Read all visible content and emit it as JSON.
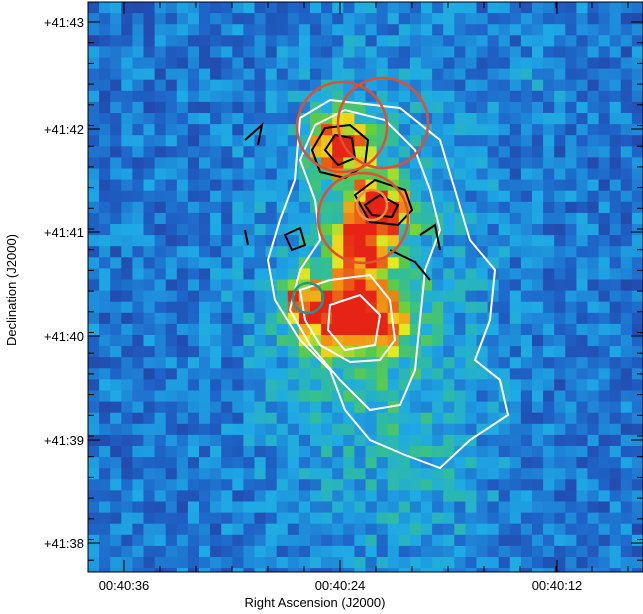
{
  "axes": {
    "x": {
      "label": "Right Ascension (J2000)",
      "ticks": [
        "00:40:36",
        "00:40:24",
        "00:40:12"
      ]
    },
    "y": {
      "label": "Declination (J2000)",
      "ticks": [
        "+41:43",
        "+41:42",
        "+41:41",
        "+41:40",
        "+41:39",
        "+41:38"
      ]
    }
  }
}
